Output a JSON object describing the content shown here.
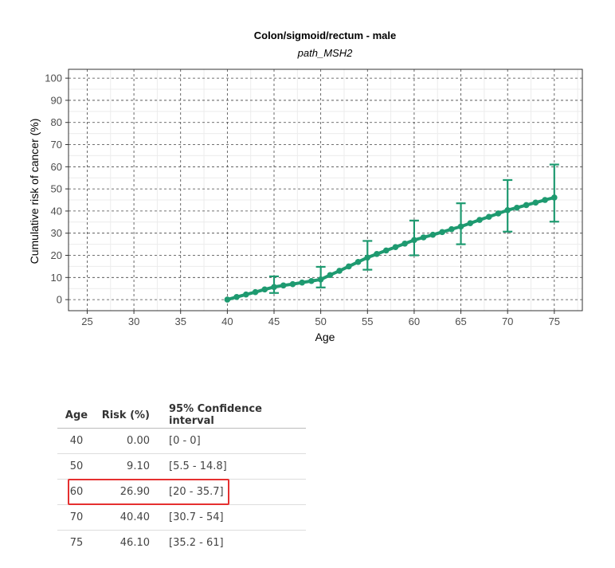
{
  "chart_data": {
    "type": "line",
    "title": "Colon/sigmoid/rectum - male",
    "subtitle": "path_MSH2",
    "xlabel": "Age",
    "ylabel": "Cumulative risk of cancer (%)",
    "xlim": [
      23,
      78
    ],
    "ylim": [
      -5,
      104
    ],
    "xticks": [
      25,
      30,
      35,
      40,
      45,
      50,
      55,
      60,
      65,
      70,
      75
    ],
    "yticks": [
      0,
      10,
      20,
      30,
      40,
      50,
      60,
      70,
      80,
      90,
      100
    ],
    "grid": true,
    "color": "#1e9a70",
    "series": [
      {
        "x": [
          40,
          41,
          42,
          43,
          44,
          45,
          46,
          47,
          48,
          49,
          50,
          51,
          52,
          53,
          54,
          55,
          56,
          57,
          58,
          59,
          60,
          61,
          62,
          63,
          64,
          65,
          66,
          67,
          68,
          69,
          70,
          71,
          72,
          73,
          74,
          75
        ],
        "values": [
          0,
          1.2,
          2.3,
          3.4,
          4.6,
          5.7,
          6.4,
          7.0,
          7.7,
          8.4,
          9.1,
          11.1,
          13.0,
          15.0,
          17.0,
          19.0,
          20.6,
          22.2,
          23.7,
          25.3,
          26.9,
          28.1,
          29.3,
          30.5,
          31.8,
          33.0,
          34.5,
          36.0,
          37.4,
          38.9,
          40.4,
          41.5,
          42.7,
          43.8,
          45.0,
          46.1
        ]
      }
    ],
    "error_bars": [
      {
        "x": 45,
        "low": 3,
        "high": 10.5
      },
      {
        "x": 50,
        "low": 5.5,
        "high": 14.8
      },
      {
        "x": 55,
        "low": 13.5,
        "high": 26.5
      },
      {
        "x": 60,
        "low": 20,
        "high": 35.7
      },
      {
        "x": 65,
        "low": 25,
        "high": 43.5
      },
      {
        "x": 70,
        "low": 30.7,
        "high": 54
      },
      {
        "x": 75,
        "low": 35.2,
        "high": 61
      }
    ]
  },
  "table": {
    "headers": {
      "age": "Age",
      "risk": "Risk (%)",
      "ci": "95% Confidence interval"
    },
    "rows": [
      {
        "age": "40",
        "risk": "0.00",
        "ci": "[0 - 0]"
      },
      {
        "age": "50",
        "risk": "9.10",
        "ci": "[5.5 - 14.8]"
      },
      {
        "age": "60",
        "risk": "26.90",
        "ci": "[20 - 35.7]"
      },
      {
        "age": "70",
        "risk": "40.40",
        "ci": "[30.7 - 54]"
      },
      {
        "age": "75",
        "risk": "46.10",
        "ci": "[35.2 - 61]"
      }
    ],
    "highlighted_row": 2,
    "highlight_color": "#e53030"
  }
}
